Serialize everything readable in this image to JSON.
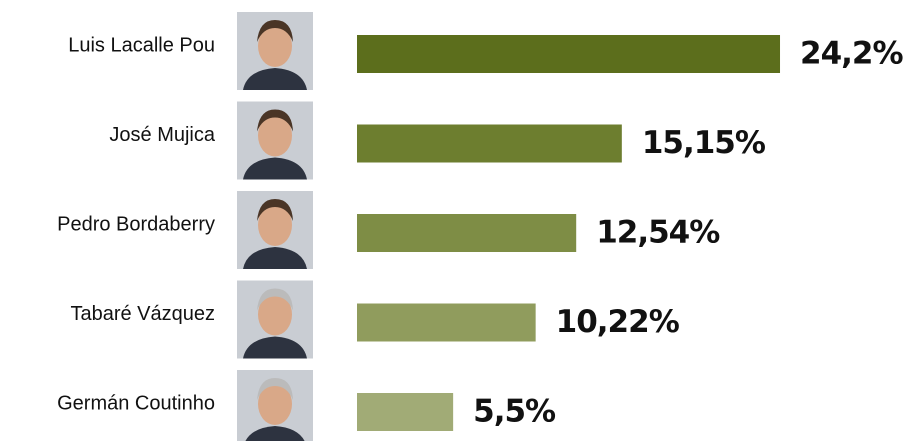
{
  "chart_data": {
    "type": "bar",
    "orientation": "horizontal",
    "categories": [
      "Luis Lacalle Pou",
      "José Mujica",
      "Pedro Bordaberry",
      "Tabaré Vázquez",
      "Germán Coutinho"
    ],
    "values": [
      24.2,
      15.15,
      12.54,
      10.22,
      5.5
    ],
    "value_labels": [
      "24,2%",
      "15,15%",
      "12,54%",
      "10,22%",
      "5,5%"
    ],
    "colors": [
      "#5c6e1c",
      "#6d7e2f",
      "#7e8d45",
      "#909c5d",
      "#a1ab76"
    ]
  }
}
